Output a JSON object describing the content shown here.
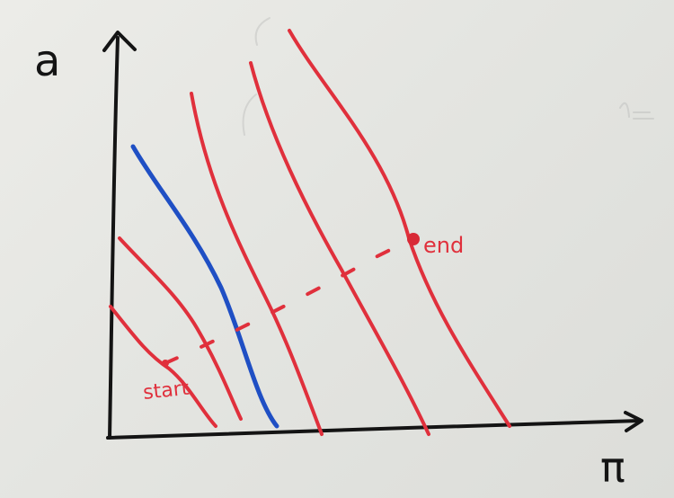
{
  "diagram": {
    "y_axis_label": "a",
    "x_axis_label": "π",
    "start_label": "start",
    "end_label": "end",
    "colors": {
      "axis": "#141414",
      "red_curve": "#e0303c",
      "blue_curve": "#1f4fc4",
      "path": "#e0303c",
      "ink_label": "#e0303c",
      "board": "#e6e6e2"
    }
  }
}
